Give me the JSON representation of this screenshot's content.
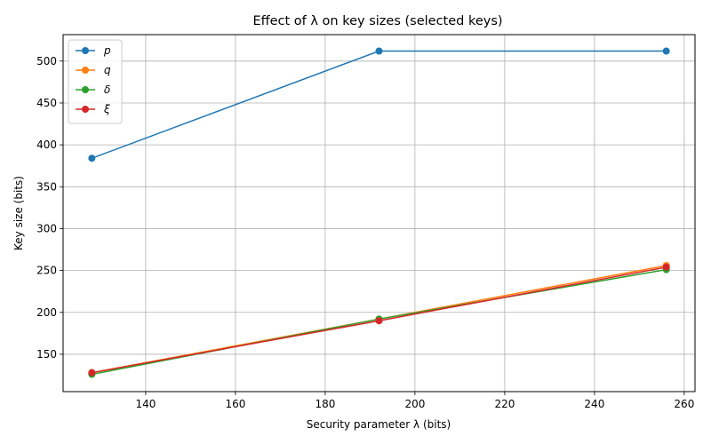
{
  "chart_data": {
    "type": "line",
    "title": "Effect of λ on key sizes (selected keys)",
    "xlabel": "Security parameter λ (bits)",
    "ylabel": "Key size (bits)",
    "x": [
      128,
      192,
      256
    ],
    "xlim": [
      121.6,
      262.4
    ],
    "ylim": [
      105.4,
      531.6
    ],
    "xticks": [
      140,
      160,
      180,
      200,
      220,
      240,
      260
    ],
    "yticks": [
      150,
      200,
      250,
      300,
      350,
      400,
      450,
      500
    ],
    "grid": true,
    "legend_position": "top-left",
    "series": [
      {
        "name": "p",
        "color": "#1f77b4",
        "values": [
          384,
          512,
          512
        ]
      },
      {
        "name": "q",
        "color": "#ff7f0e",
        "values": [
          128,
          192,
          256
        ]
      },
      {
        "name": "δ",
        "color": "#2ca02c",
        "values": [
          126,
          192,
          251
        ]
      },
      {
        "name": "ξ",
        "color": "#d62728",
        "values": [
          128,
          190,
          254
        ]
      }
    ]
  }
}
